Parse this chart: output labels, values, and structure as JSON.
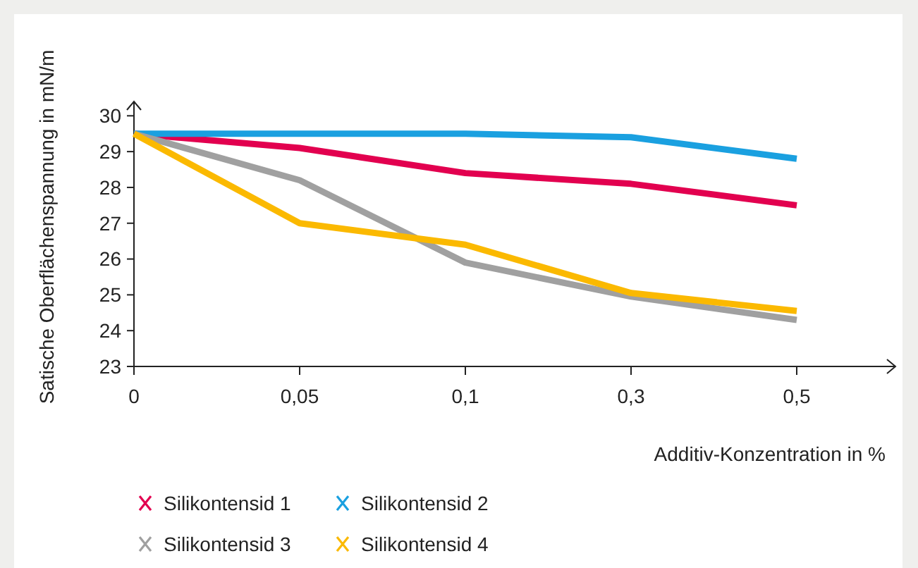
{
  "chart_data": {
    "type": "line",
    "xlabel": "Additiv-Konzentration in %",
    "ylabel": "Satische Oberflächenspannung in mN/m",
    "categories": [
      "0",
      "0,05",
      "0,1",
      "0,3",
      "0,5"
    ],
    "ylim": [
      23,
      30.4
    ],
    "yticks": [
      23,
      24,
      25,
      26,
      27,
      28,
      29,
      30
    ],
    "grid": false,
    "legend": "bottom",
    "marker": "none",
    "line_style": "solid",
    "series": [
      {
        "name": "Silikontensid 1",
        "color": "#e2004f",
        "values": [
          29.5,
          29.1,
          28.4,
          28.1,
          27.5
        ]
      },
      {
        "name": "Silikontensid 2",
        "color": "#1aa0e0",
        "values": [
          29.5,
          29.5,
          29.5,
          29.4,
          28.8
        ]
      },
      {
        "name": "Silikontensid 3",
        "color": "#a0a0a0",
        "values": [
          29.5,
          28.2,
          25.9,
          24.95,
          24.3
        ]
      },
      {
        "name": "Silikontensid 4",
        "color": "#fbb900",
        "values": [
          29.5,
          27.0,
          26.4,
          25.05,
          24.55
        ]
      }
    ]
  }
}
